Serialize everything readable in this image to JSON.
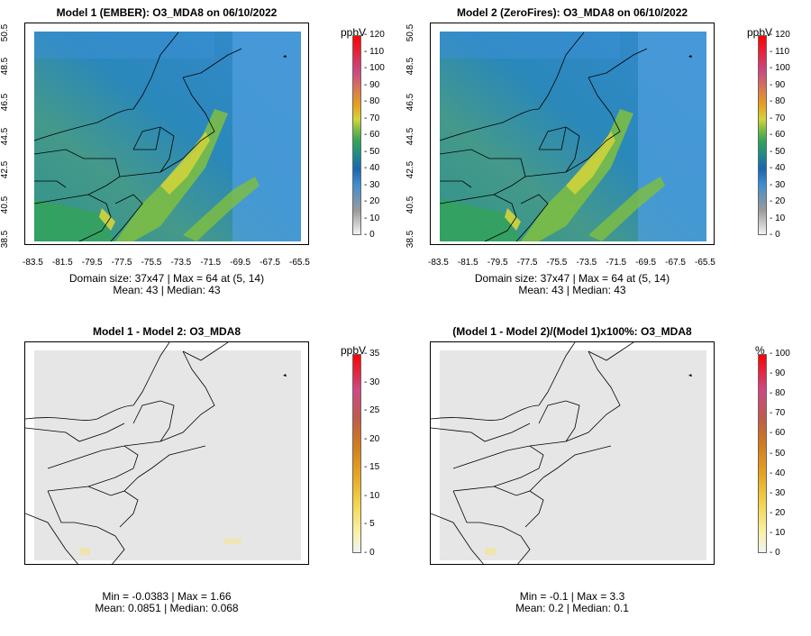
{
  "panels": [
    {
      "id": "p1",
      "title": "Model 1 (EMBER): O3_MDA8 on 06/10/2022",
      "unit": "ppbV",
      "stats_line1": "Domain size: 37x47 | Max = 64 at (5, 14)",
      "stats_line2": "Mean: 43 |  Median: 43",
      "colorbar_labels": [
        "120",
        "110",
        "100",
        "90",
        "80",
        "70",
        "60",
        "50",
        "40",
        "30",
        "20",
        "10",
        "0"
      ]
    },
    {
      "id": "p2",
      "title": "Model 2 (ZeroFires): O3_MDA8 on 06/10/2022",
      "unit": "ppbV",
      "stats_line1": "Domain size: 37x47 | Max = 64 at (5, 14)",
      "stats_line2": "Mean: 43 |  Median: 43",
      "colorbar_labels": [
        "120",
        "110",
        "100",
        "90",
        "80",
        "70",
        "60",
        "50",
        "40",
        "30",
        "20",
        "10",
        "0"
      ]
    },
    {
      "id": "p3",
      "title": "Model 1 - Model 2: O3_MDA8",
      "unit": "ppbV",
      "stats_line1": "Min = -0.0383 | Max = 1.66",
      "stats_line2": "Mean: 0.0851 |  Median: 0.068",
      "colorbar_labels": [
        "35",
        "30",
        "25",
        "20",
        "15",
        "10",
        "5",
        "0"
      ]
    },
    {
      "id": "p4",
      "title": "(Model 1 - Model 2)/(Model 1)x100%: O3_MDA8",
      "unit": "%",
      "stats_line1": "Min = -0.1 | Max = 3.3",
      "stats_line2": "Mean: 0.2 |  Median: 0.1",
      "colorbar_labels": [
        "100",
        "90",
        "80",
        "70",
        "60",
        "50",
        "40",
        "30",
        "20",
        "10",
        "0"
      ]
    }
  ],
  "axes": {
    "x_ticks": [
      "-83.5",
      "-81.5",
      "-79.5",
      "-77.5",
      "-75.5",
      "-73.5",
      "-71.5",
      "-69.5",
      "-67.5",
      "-65.5"
    ],
    "y_ticks": [
      "50.5",
      "48.5",
      "46.5",
      "44.5",
      "42.5",
      "40.5",
      "38.5"
    ]
  },
  "colors": {
    "diff_background": "#e6e6e6",
    "ozone_scale": [
      "#f2f2f2",
      "#c8c8c8",
      "#9a9a9a",
      "#3f8fd1",
      "#1e74c2",
      "#1a66b0",
      "#1f8a8a",
      "#33a457",
      "#7fbf3f",
      "#d4d43a",
      "#e6a21e",
      "#cc4a86",
      "#ff0000"
    ],
    "diff_scale": [
      "#f2f2f2",
      "#f9f2a6",
      "#f3d34a",
      "#e6a21e",
      "#d07a1e",
      "#c05a4a",
      "#cc4a86",
      "#ff0000"
    ]
  }
}
